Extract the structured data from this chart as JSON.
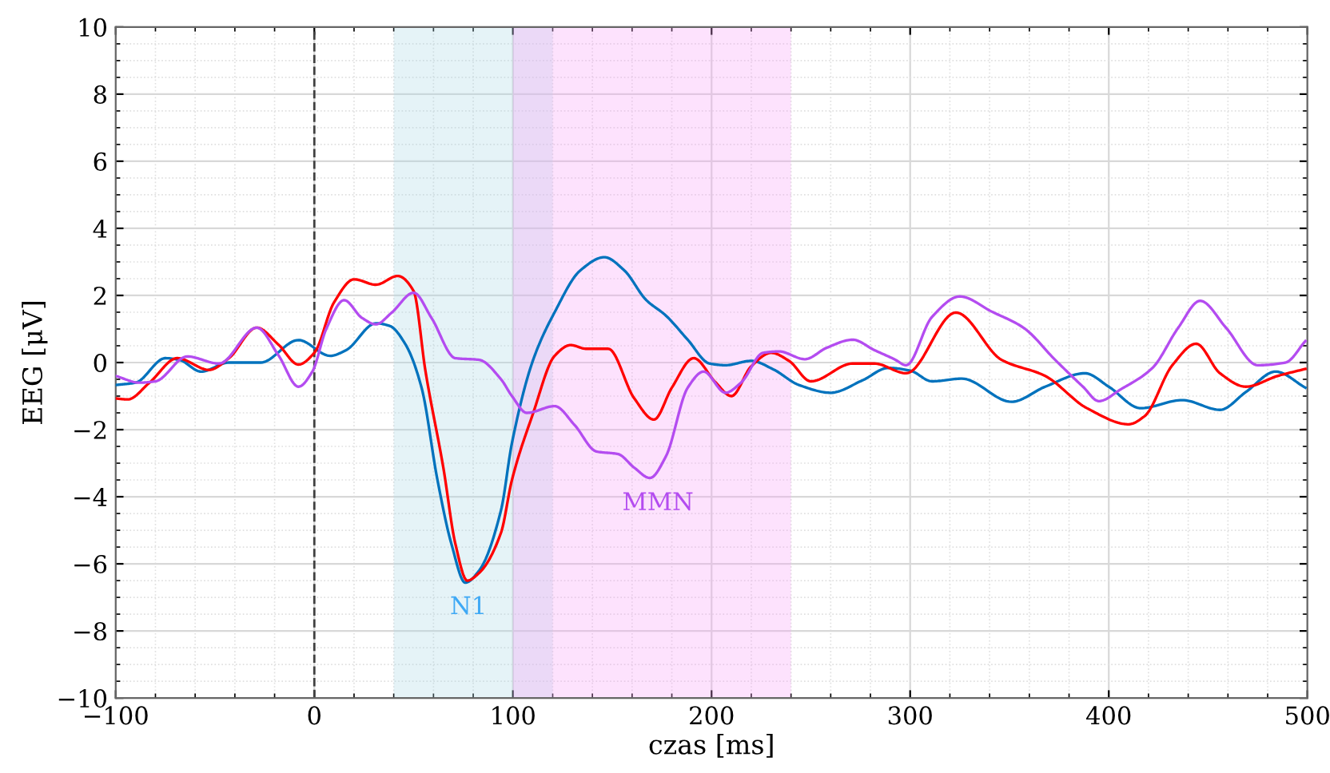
{
  "chart_data": {
    "type": "line",
    "xlabel": "czas [ms]",
    "ylabel": "EEG [μV]",
    "xlim": [
      -100,
      500
    ],
    "ylim": [
      -10,
      10
    ],
    "xticks": [
      -100,
      0,
      100,
      200,
      300,
      400,
      500
    ],
    "yticks": [
      -10,
      -8,
      -6,
      -4,
      -2,
      0,
      2,
      4,
      6,
      8,
      10
    ],
    "grid": true,
    "legend": false,
    "series": [
      {
        "color": "#0072bd",
        "x": [
          -100,
          -90,
          -75,
          -68,
          -57,
          -43,
          -27,
          -8,
          8,
          16,
          31,
          38,
          46,
          54,
          62,
          69,
          76,
          83,
          94,
          99.5,
          110,
          121,
          134,
          146,
          156,
          167,
          177,
          188,
          199,
          207,
          220,
          231,
          244,
          260,
          276,
          289,
          300,
          311,
          326,
          351,
          368,
          388,
          400,
          416,
          437,
          456,
          469,
          484,
          499
        ],
        "values": [
          -0.67,
          -0.6,
          0.13,
          0.08,
          -0.27,
          0,
          0,
          0.67,
          0.2,
          0.37,
          1.17,
          1.09,
          0.53,
          -0.75,
          -3.5,
          -5.4,
          -6.56,
          -6.2,
          -4.4,
          -2.4,
          0.05,
          1.5,
          2.75,
          3.14,
          2.75,
          1.87,
          1.4,
          0.68,
          -0.03,
          -0.08,
          0.05,
          -0.2,
          -0.67,
          -0.9,
          -0.53,
          -0.16,
          -0.24,
          -0.56,
          -0.48,
          -1.17,
          -0.72,
          -0.32,
          -0.72,
          -1.36,
          -1.12,
          -1.41,
          -0.88,
          -0.27,
          -0.75
        ]
      },
      {
        "color": "#ff0000",
        "x": [
          -100,
          -94,
          -83,
          -69,
          -53,
          -43,
          -29,
          -18,
          -8,
          0,
          10,
          20,
          31,
          42,
          50,
          56,
          65,
          71,
          77,
          83,
          94,
          99.5,
          110,
          121,
          129,
          137,
          148,
          161,
          171,
          180,
          191,
          202,
          210,
          220,
          230,
          239,
          250,
          271,
          282,
          298,
          323,
          346,
          368,
          389,
          410,
          418,
          432,
          444,
          456,
          469,
          485,
          499
        ],
        "values": [
          -1.07,
          -1.1,
          -0.6,
          0.13,
          -0.22,
          0.13,
          1.04,
          0.53,
          -0.06,
          0.29,
          1.8,
          2.48,
          2.32,
          2.58,
          2.13,
          -0.27,
          -3.15,
          -5.4,
          -6.5,
          -6.27,
          -5.07,
          -3.5,
          -1.54,
          0.2,
          0.52,
          0.41,
          0.41,
          -1.06,
          -1.7,
          -0.75,
          0.13,
          -0.59,
          -1.0,
          -0.11,
          0.29,
          0.05,
          -0.56,
          -0.03,
          -0.03,
          -0.32,
          1.49,
          0.08,
          -0.4,
          -1.36,
          -1.84,
          -1.6,
          -0.08,
          0.56,
          -0.32,
          -0.72,
          -0.4,
          -0.19
        ]
      },
      {
        "color": "#b44cf0",
        "x": [
          -100,
          -88,
          -80,
          -64,
          -48,
          -29,
          -18,
          -8,
          -1,
          6,
          15,
          24,
          31,
          39,
          50,
          59,
          71,
          83,
          94,
          99.5,
          107,
          121,
          131,
          142,
          153,
          161,
          169,
          177,
          188,
          196,
          207,
          215,
          226,
          234,
          247,
          258,
          271,
          282,
          292,
          298,
          311,
          325,
          341,
          357,
          373,
          387,
          395,
          406,
          422,
          435,
          446,
          459,
          475,
          489,
          499
        ],
        "values": [
          -0.4,
          -0.6,
          -0.56,
          0.18,
          -0.03,
          1.04,
          0.21,
          -0.72,
          -0.27,
          1.0,
          1.86,
          1.33,
          1.14,
          1.49,
          2.08,
          1.33,
          0.13,
          0.08,
          -0.5,
          -1.0,
          -1.5,
          -1.3,
          -1.86,
          -2.65,
          -2.73,
          -3.13,
          -3.44,
          -2.8,
          -0.75,
          -0.27,
          -0.9,
          -0.59,
          0.29,
          0.33,
          0.1,
          0.44,
          0.68,
          0.37,
          0.1,
          -0.08,
          1.36,
          1.97,
          1.52,
          1.04,
          0.08,
          -0.72,
          -1.15,
          -0.8,
          -0.16,
          1.04,
          1.84,
          1.04,
          -0.08,
          0,
          0.64
        ]
      }
    ],
    "ref_lines": [
      {
        "axis": "x",
        "value": 0,
        "color": "#404040",
        "line_style": "dashed"
      }
    ],
    "bands": [
      {
        "axis": "x",
        "from": 40,
        "to": 120,
        "color": "#a8d8e6"
      },
      {
        "axis": "x",
        "from": 100,
        "to": 240,
        "color": "#f7a0f7"
      }
    ],
    "annotations": [
      "N1",
      "MMN"
    ]
  }
}
